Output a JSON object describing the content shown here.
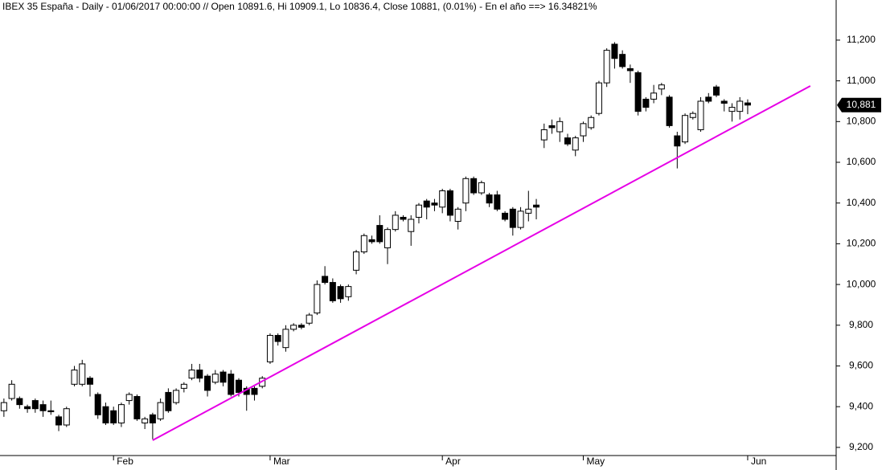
{
  "chart_data": {
    "type": "candlestick",
    "title": "IBEX 35 España - Daily - 01/06/2017 00:00:00 // Open 10891.6, Hi 10909.1, Lo 10836.4, Close 10881, (0.01%) - En el año ==> 16.34821%",
    "categories": [
      null,
      null,
      null,
      null,
      null,
      null,
      null,
      null,
      null,
      null,
      null,
      null,
      null,
      null,
      "Feb",
      null,
      null,
      null,
      null,
      null,
      null,
      null,
      null,
      null,
      null,
      null,
      null,
      null,
      null,
      null,
      null,
      null,
      null,
      null,
      "Mar",
      null,
      null,
      null,
      null,
      null,
      null,
      null,
      null,
      null,
      null,
      null,
      null,
      null,
      null,
      null,
      null,
      null,
      null,
      null,
      null,
      null,
      "Apr",
      null,
      null,
      null,
      null,
      null,
      null,
      null,
      null,
      null,
      null,
      null,
      null,
      null,
      null,
      null,
      null,
      null,
      "May",
      null,
      null,
      null,
      null,
      null,
      null,
      null,
      null,
      null,
      null,
      null,
      null,
      null,
      null,
      null,
      null,
      null,
      null,
      null,
      null,
      "Jun"
    ],
    "open": [
      9380,
      9440,
      9440,
      9400,
      9430,
      9410,
      9380,
      9350,
      9310,
      9510,
      9510,
      9540,
      9460,
      9400,
      9380,
      9320,
      9430,
      9450,
      9320,
      9360,
      9340,
      9470,
      9420,
      9490,
      9540,
      9580,
      9550,
      9520,
      9570,
      9560,
      9530,
      9490,
      9490,
      9500,
      9620,
      9750,
      9690,
      9780,
      9800,
      9810,
      9860,
      10040,
      10010,
      9990,
      9940,
      10070,
      10160,
      10220,
      10290,
      10180,
      10270,
      10330,
      10260,
      10330,
      10410,
      10400,
      10380,
      10460,
      10310,
      10400,
      10520,
      10450,
      10440,
      10440,
      10350,
      10370,
      10280,
      10350,
      10390,
      10710,
      10780,
      10750,
      10720,
      10660,
      10730,
      10770,
      10840,
      10990,
      11180,
      11130,
      11060,
      11040,
      10910,
      10910,
      10960,
      10920,
      10730,
      10700,
      10820,
      10760,
      10920,
      10970,
      10900,
      10850,
      10850,
      10891.6
    ],
    "high": [
      9440,
      9530,
      9450,
      9410,
      9440,
      9430,
      9430,
      9360,
      9400,
      9600,
      9630,
      9550,
      9470,
      9420,
      9400,
      9420,
      9470,
      9460,
      9350,
      9370,
      9440,
      9490,
      9490,
      9520,
      9610,
      9610,
      9560,
      9580,
      9580,
      9580,
      9540,
      9500,
      9500,
      9550,
      9760,
      9760,
      9800,
      9810,
      9810,
      9860,
      10020,
      10090,
      10030,
      10000,
      10000,
      10170,
      10250,
      10240,
      10340,
      10280,
      10360,
      10340,
      10340,
      10400,
      10420,
      10420,
      10470,
      10470,
      10380,
      10530,
      10530,
      10510,
      10450,
      10460,
      10360,
      10380,
      10380,
      10460,
      10420,
      10790,
      10810,
      10820,
      10740,
      10730,
      10800,
      10830,
      11000,
      11160,
      11190,
      11150,
      11080,
      11050,
      10920,
      10980,
      10990,
      10930,
      10750,
      10840,
      10850,
      10920,
      10940,
      10980,
      10910,
      10890,
      10920,
      10909.1
    ],
    "low": [
      9350,
      9430,
      9390,
      9370,
      9370,
      9350,
      9360,
      9280,
      9300,
      9500,
      9500,
      9450,
      9340,
      9310,
      9310,
      9300,
      9410,
      9330,
      9290,
      9240,
      9330,
      9370,
      9410,
      9470,
      9530,
      9520,
      9450,
      9510,
      9500,
      9450,
      9450,
      9380,
      9430,
      9490,
      9610,
      9700,
      9670,
      9770,
      9780,
      9800,
      9850,
      10000,
      9910,
      9910,
      9920,
      10050,
      10150,
      10200,
      10200,
      10100,
      10260,
      10310,
      10190,
      10300,
      10320,
      10360,
      10350,
      10310,
      10270,
      10360,
      10440,
      10440,
      10380,
      10360,
      10310,
      10240,
      10270,
      10310,
      10320,
      10670,
      10740,
      10700,
      10680,
      10630,
      10700,
      10760,
      10830,
      10970,
      11060,
      11060,
      10990,
      10830,
      10850,
      10890,
      10930,
      10770,
      10570,
      10690,
      10810,
      10750,
      10890,
      10920,
      10850,
      10800,
      10810,
      10836.4
    ],
    "close": [
      9420,
      9510,
      9410,
      9390,
      9390,
      9380,
      9375,
      9310,
      9390,
      9580,
      9610,
      9510,
      9360,
      9320,
      9320,
      9410,
      9460,
      9340,
      9340,
      9320,
      9420,
      9380,
      9480,
      9510,
      9580,
      9540,
      9480,
      9560,
      9520,
      9460,
      9470,
      9460,
      9460,
      9540,
      9750,
      9720,
      9780,
      9800,
      9790,
      9850,
      10000,
      10010,
      9920,
      9930,
      9990,
      10160,
      10240,
      10210,
      10210,
      10270,
      10340,
      10320,
      10320,
      10390,
      10380,
      10390,
      10460,
      10340,
      10370,
      10520,
      10450,
      10500,
      10400,
      10370,
      10320,
      10280,
      10360,
      10370,
      10380,
      10760,
      10770,
      10800,
      10690,
      10720,
      10790,
      10820,
      10990,
      11150,
      11110,
      11070,
      11050,
      10850,
      10870,
      10940,
      10980,
      10780,
      10680,
      10830,
      10840,
      10900,
      10900,
      10930,
      10890,
      10870,
      10900,
      10881
    ],
    "up_color": "#ffffff",
    "down_color": "#000000",
    "xlim": [
      -0.5,
      106.3
    ],
    "ylim": [
      9160,
      11397
    ],
    "yticks": [
      {
        "value": 9200,
        "label": "9,200"
      },
      {
        "value": 9400,
        "label": "9,400"
      },
      {
        "value": 9600,
        "label": "9,600"
      },
      {
        "value": 9800,
        "label": "9,800"
      },
      {
        "value": 10000,
        "label": "10,000"
      },
      {
        "value": 10200,
        "label": "10,200"
      },
      {
        "value": 10400,
        "label": "10,400"
      },
      {
        "value": 10600,
        "label": "10,600"
      },
      {
        "value": 10800,
        "label": "10,800"
      },
      {
        "value": 11000,
        "label": "11,000"
      },
      {
        "value": 11200,
        "label": "11,200"
      }
    ],
    "trendline": {
      "x": [
        19,
        103
      ],
      "values": [
        9235,
        10975
      ],
      "color": "#e600e6"
    },
    "last_price": {
      "value": 10881,
      "label": "10,881"
    }
  }
}
